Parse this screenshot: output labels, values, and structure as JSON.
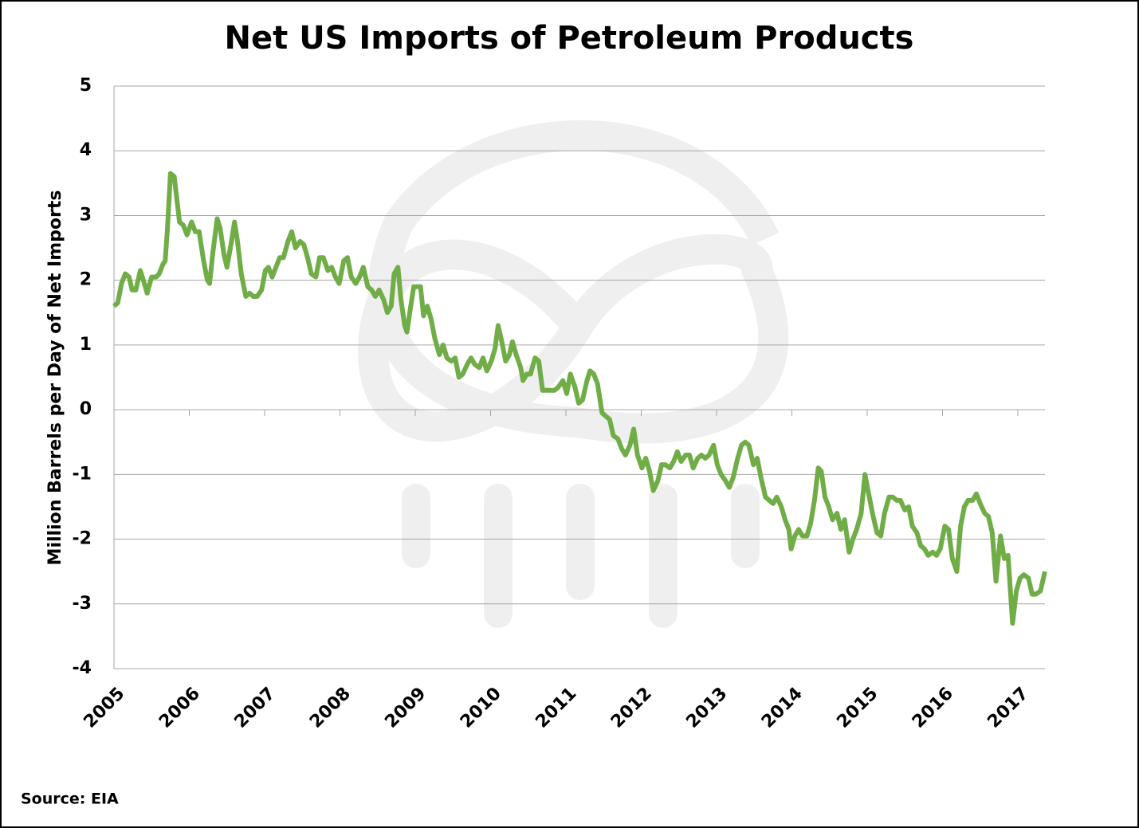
{
  "chart_data": {
    "type": "line",
    "title": "Net US Imports of Petroleum Products",
    "y_label": "Million Barrels per Day of Net Imports",
    "source": "Source: EIA",
    "xlim": [
      2005,
      2017.36
    ],
    "xticks": [
      2005,
      2006,
      2007,
      2008,
      2009,
      2010,
      2011,
      2012,
      2013,
      2014,
      2015,
      2016,
      2017
    ],
    "ylim": [
      -4,
      5
    ],
    "yticks": [
      5,
      4,
      3,
      2,
      1,
      0,
      -1,
      -2,
      -3,
      -4
    ],
    "grid": true,
    "series": [
      {
        "name": "Net imports",
        "color": "#70ad47",
        "x": [
          2005.0,
          2005.05,
          2005.1,
          2005.15,
          2005.2,
          2005.24,
          2005.29,
          2005.35,
          2005.39,
          2005.44,
          2005.5,
          2005.56,
          2005.6,
          2005.65,
          2005.68,
          2005.71,
          2005.75,
          2005.8,
          2005.87,
          2005.92,
          2005.97,
          2006.03,
          2006.08,
          2006.13,
          2006.19,
          2006.24,
          2006.27,
          2006.31,
          2006.37,
          2006.41,
          2006.46,
          2006.5,
          2006.56,
          2006.6,
          2006.64,
          2006.69,
          2006.75,
          2006.8,
          2006.85,
          2006.9,
          2006.96,
          2007.01,
          2007.05,
          2007.1,
          2007.15,
          2007.2,
          2007.25,
          2007.31,
          2007.36,
          2007.41,
          2007.47,
          2007.52,
          2007.57,
          2007.62,
          2007.68,
          2007.73,
          2007.78,
          2007.84,
          2007.89,
          2007.94,
          2007.99,
          2008.05,
          2008.1,
          2008.15,
          2008.21,
          2008.26,
          2008.31,
          2008.37,
          2008.42,
          2008.47,
          2008.52,
          2008.58,
          2008.63,
          2008.68,
          2008.72,
          2008.77,
          2008.81,
          2008.86,
          2008.89,
          2008.94,
          2008.98,
          2009.03,
          2009.07,
          2009.11,
          2009.16,
          2009.21,
          2009.26,
          2009.32,
          2009.37,
          2009.42,
          2009.48,
          2009.53,
          2009.58,
          2009.63,
          2009.69,
          2009.74,
          2009.79,
          2009.85,
          2009.9,
          2009.95,
          2010.01,
          2010.06,
          2010.1,
          2010.14,
          2010.2,
          2010.25,
          2010.29,
          2010.34,
          2010.4,
          2010.43,
          2010.48,
          2010.53,
          2010.59,
          2010.64,
          2010.69,
          2010.75,
          2010.8,
          2010.85,
          2010.9,
          2010.96,
          2011.01,
          2011.06,
          2011.12,
          2011.17,
          2011.22,
          2011.28,
          2011.32,
          2011.37,
          2011.42,
          2011.48,
          2011.53,
          2011.58,
          2011.63,
          2011.69,
          2011.74,
          2011.79,
          2011.85,
          2011.9,
          2011.95,
          2012.01,
          2012.06,
          2012.11,
          2012.16,
          2012.22,
          2012.27,
          2012.32,
          2012.38,
          2012.43,
          2012.48,
          2012.53,
          2012.59,
          2012.64,
          2012.69,
          2012.75,
          2012.8,
          2012.85,
          2012.9,
          2012.96,
          2013.01,
          2013.06,
          2013.12,
          2013.17,
          2013.22,
          2013.28,
          2013.33,
          2013.38,
          2013.43,
          2013.49,
          2013.54,
          2013.59,
          2013.65,
          2013.7,
          2013.75,
          2013.8,
          2013.86,
          2013.91,
          2013.96,
          2013.99,
          2014.04,
          2014.09,
          2014.14,
          2014.2,
          2014.25,
          2014.3,
          2014.35,
          2014.39,
          2014.44,
          2014.49,
          2014.54,
          2014.6,
          2014.65,
          2014.7,
          2014.76,
          2014.81,
          2014.86,
          2014.92,
          2014.97,
          2015.02,
          2015.07,
          2015.13,
          2015.18,
          2015.23,
          2015.29,
          2015.34,
          2015.39,
          2015.44,
          2015.5,
          2015.55,
          2015.6,
          2015.66,
          2015.71,
          2015.76,
          2015.81,
          2015.87,
          2015.92,
          2015.97,
          2016.03,
          2016.08,
          2016.13,
          2016.19,
          2016.24,
          2016.29,
          2016.34,
          2016.4,
          2016.45,
          2016.5,
          2016.56,
          2016.61,
          2016.66,
          2016.71,
          2016.77,
          2016.82,
          2016.87,
          2016.93,
          2016.98,
          2017.03,
          2017.08,
          2017.14,
          2017.19,
          2017.24,
          2017.3,
          2017.36
        ],
        "values": [
          1.6,
          1.65,
          1.95,
          2.1,
          2.05,
          1.85,
          1.85,
          2.15,
          2.0,
          1.8,
          2.05,
          2.05,
          2.1,
          2.25,
          2.3,
          2.8,
          3.65,
          3.6,
          2.9,
          2.85,
          2.7,
          2.9,
          2.75,
          2.75,
          2.3,
          2.0,
          1.95,
          2.4,
          2.95,
          2.8,
          2.4,
          2.2,
          2.6,
          2.9,
          2.6,
          2.1,
          1.75,
          1.8,
          1.75,
          1.75,
          1.85,
          2.15,
          2.2,
          2.05,
          2.2,
          2.35,
          2.35,
          2.6,
          2.75,
          2.5,
          2.6,
          2.55,
          2.35,
          2.1,
          2.05,
          2.35,
          2.35,
          2.15,
          2.2,
          2.05,
          1.95,
          2.3,
          2.35,
          2.05,
          1.95,
          2.05,
          2.2,
          1.9,
          1.85,
          1.75,
          1.85,
          1.7,
          1.5,
          1.6,
          2.1,
          2.2,
          1.7,
          1.3,
          1.2,
          1.6,
          1.9,
          1.9,
          1.9,
          1.45,
          1.6,
          1.4,
          1.1,
          0.85,
          1.0,
          0.8,
          0.75,
          0.8,
          0.5,
          0.55,
          0.7,
          0.8,
          0.7,
          0.65,
          0.8,
          0.6,
          0.75,
          0.95,
          1.3,
          1.1,
          0.75,
          0.85,
          1.05,
          0.85,
          0.65,
          0.45,
          0.55,
          0.55,
          0.8,
          0.75,
          0.3,
          0.3,
          0.3,
          0.3,
          0.35,
          0.45,
          0.25,
          0.55,
          0.35,
          0.1,
          0.15,
          0.45,
          0.6,
          0.55,
          0.4,
          -0.05,
          -0.1,
          -0.15,
          -0.4,
          -0.45,
          -0.6,
          -0.7,
          -0.55,
          -0.3,
          -0.7,
          -0.9,
          -0.75,
          -0.95,
          -1.25,
          -1.1,
          -0.85,
          -0.85,
          -0.9,
          -0.8,
          -0.65,
          -0.8,
          -0.7,
          -0.7,
          -0.9,
          -0.75,
          -0.7,
          -0.75,
          -0.7,
          -0.55,
          -0.85,
          -1.0,
          -1.1,
          -1.2,
          -1.05,
          -0.75,
          -0.55,
          -0.5,
          -0.55,
          -0.85,
          -0.75,
          -1.05,
          -1.35,
          -1.4,
          -1.45,
          -1.35,
          -1.5,
          -1.7,
          -1.85,
          -2.15,
          -1.95,
          -1.85,
          -1.95,
          -1.95,
          -1.75,
          -1.4,
          -0.9,
          -0.95,
          -1.35,
          -1.5,
          -1.7,
          -1.6,
          -1.85,
          -1.7,
          -2.2,
          -2.0,
          -1.85,
          -1.6,
          -1.0,
          -1.3,
          -1.6,
          -1.9,
          -1.95,
          -1.6,
          -1.35,
          -1.35,
          -1.4,
          -1.4,
          -1.55,
          -1.5,
          -1.8,
          -1.9,
          -2.1,
          -2.15,
          -2.25,
          -2.2,
          -2.25,
          -2.15,
          -1.8,
          -1.85,
          -2.3,
          -2.5,
          -1.8,
          -1.5,
          -1.4,
          -1.4,
          -1.3,
          -1.45,
          -1.6,
          -1.65,
          -1.9,
          -2.65,
          -1.95,
          -2.3,
          -2.25,
          -3.3,
          -2.8,
          -2.6,
          -2.55,
          -2.6,
          -2.85,
          -2.85,
          -2.8,
          -2.5
        ]
      }
    ]
  }
}
